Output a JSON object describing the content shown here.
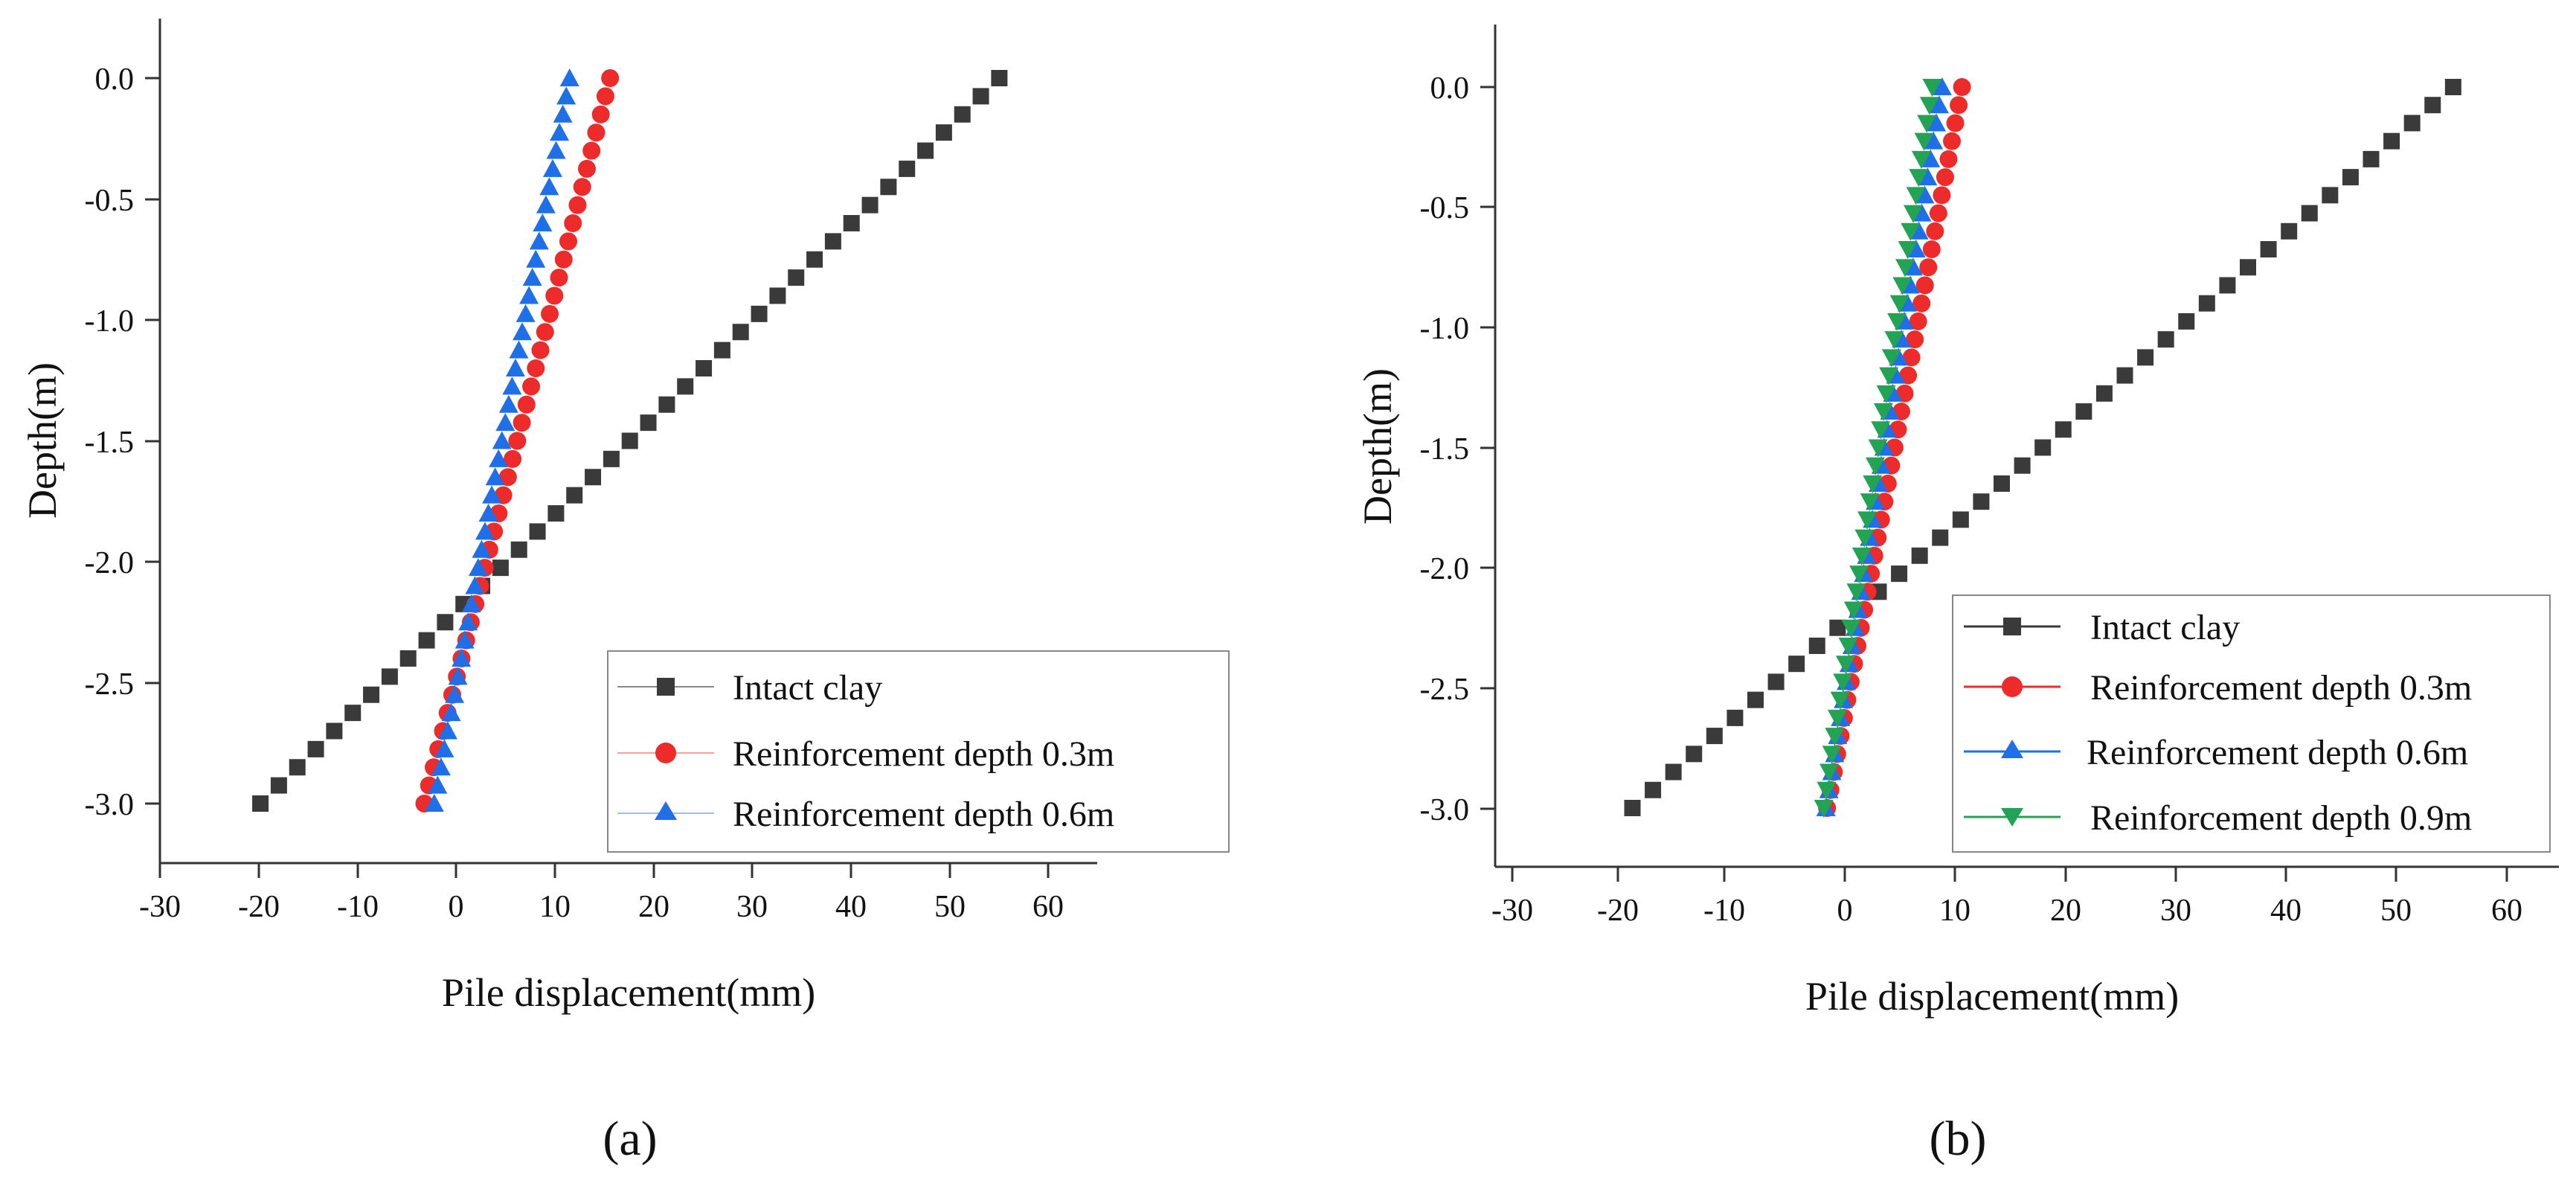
{
  "chart_data": [
    {
      "type": "line",
      "panel_label": "(a)",
      "xlabel": "Pile displacement(mm)",
      "ylabel": "Depth(m)",
      "xlim": [
        -30,
        65
      ],
      "ylim": [
        -3.25,
        0.25
      ],
      "xticks": [
        -30,
        -20,
        -10,
        0,
        10,
        20,
        30,
        40,
        50,
        60
      ],
      "xtick_labels": [
        "-30",
        "-20",
        "-10",
        "0",
        "10",
        "20",
        "30",
        "40",
        "50",
        "60"
      ],
      "yticks": [
        0.0,
        -0.5,
        -1.0,
        -1.5,
        -2.0,
        -2.5,
        -3.0
      ],
      "ytick_labels": [
        "0.0",
        "-0.5",
        "-1.0",
        "-1.5",
        "-2.0",
        "-2.5",
        "-3.0"
      ],
      "legend_position": "bottom-right",
      "series": [
        {
          "name": "Intact clay",
          "color": "#3a3a3a",
          "marker": "square",
          "top_x": 55.0,
          "bottom_x": -19.8,
          "depth_from": 0.0,
          "depth_to": -3.0,
          "points": 41
        },
        {
          "name": "Reinforcement depth 0.3m",
          "color": "#ee2b2b",
          "marker": "circle",
          "top_x": 15.6,
          "bottom_x": -3.2,
          "depth_from": 0.0,
          "depth_to": -3.0,
          "points": 41
        },
        {
          "name": "Reinforcement depth 0.6m",
          "color": "#1f6fe8",
          "marker": "triangle-up",
          "top_x": 11.5,
          "bottom_x": -2.2,
          "depth_from": 0.0,
          "depth_to": -3.0,
          "points": 41
        }
      ]
    },
    {
      "type": "line",
      "panel_label": "(b)",
      "xlabel": "Pile displacement(mm)",
      "ylabel": "Depth(m)",
      "xlim": [
        -30,
        65
      ],
      "ylim": [
        -3.25,
        0.25
      ],
      "xticks": [
        -30,
        -20,
        -10,
        0,
        10,
        20,
        30,
        40,
        50,
        60
      ],
      "xtick_labels": [
        "-30",
        "-20",
        "-10",
        "0",
        "10",
        "20",
        "30",
        "40",
        "50",
        "60"
      ],
      "yticks": [
        0.0,
        -0.5,
        -1.0,
        -1.5,
        -2.0,
        -2.5,
        -3.0
      ],
      "ytick_labels": [
        "0.0",
        "-0.5",
        "-1.0",
        "-1.5",
        "-2.0",
        "-2.5",
        "-3.0"
      ],
      "legend_position": "bottom-right",
      "series": [
        {
          "name": "Intact clay",
          "color": "#3a3a3a",
          "marker": "square",
          "top_x": 55.0,
          "bottom_x": -19.2,
          "depth_from": 0.0,
          "depth_to": -3.0,
          "points": 41
        },
        {
          "name": "Reinforcement depth 0.3m",
          "color": "#ee2b2b",
          "marker": "circle",
          "top_x": 10.6,
          "bottom_x": -1.6,
          "depth_from": 0.0,
          "depth_to": -3.0,
          "points": 41
        },
        {
          "name": "Reinforcement depth 0.6m",
          "color": "#1f6fe8",
          "marker": "triangle-up",
          "top_x": 8.8,
          "bottom_x": -1.7,
          "depth_from": 0.0,
          "depth_to": -3.0,
          "points": 41
        },
        {
          "name": "Reinforcement depth 0.9m",
          "color": "#23a455",
          "marker": "triangle-down",
          "top_x": 7.9,
          "bottom_x": -1.9,
          "depth_from": 0.0,
          "depth_to": -3.0,
          "points": 41
        }
      ]
    }
  ]
}
